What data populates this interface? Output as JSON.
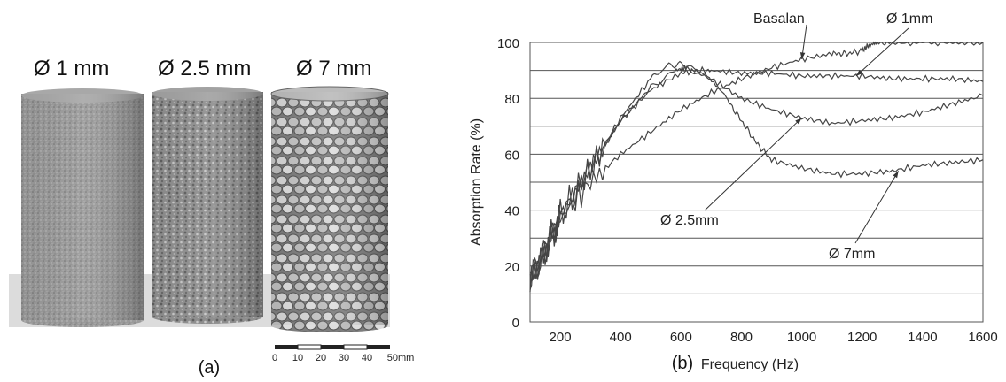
{
  "panel_a": {
    "caption": "(a)",
    "samples": [
      {
        "label": "Ø 1 mm"
      },
      {
        "label": "Ø 2.5 mm"
      },
      {
        "label": "Ø 7 mm"
      }
    ],
    "scale_bar": {
      "ticks": [
        "0",
        "10",
        "20",
        "30",
        "40",
        "50mm"
      ]
    }
  },
  "panel_b": {
    "caption": "(b)"
  },
  "chart_data": {
    "type": "line",
    "title": "",
    "xlabel": "Frequency (Hz)",
    "ylabel": "Absorption Rate (%)",
    "xlim": [
      100,
      1600
    ],
    "ylim": [
      0,
      100
    ],
    "x_ticks": [
      200,
      400,
      600,
      800,
      1000,
      1200,
      1400,
      1600
    ],
    "y_ticks": [
      0,
      20,
      40,
      60,
      80,
      100
    ],
    "grid": "horizontal",
    "colors": {
      "line": "#444444",
      "grid": "#555555",
      "background": "#ffffff"
    },
    "series": [
      {
        "name": "Basalan",
        "x": [
          100,
          150,
          200,
          300,
          400,
          500,
          600,
          700,
          800,
          900,
          1000,
          1100,
          1150,
          1200,
          1220,
          1250,
          1300,
          1400,
          1500,
          1600
        ],
        "y": [
          15,
          25,
          37,
          50,
          60,
          68,
          76,
          82,
          87,
          91,
          94,
          96,
          96,
          97,
          99,
          100,
          100,
          100,
          100,
          100
        ]
      },
      {
        "name": "Ø 1mm",
        "x": [
          100,
          150,
          200,
          300,
          400,
          500,
          600,
          650,
          700,
          800,
          900,
          1000,
          1100,
          1200,
          1300,
          1400,
          1500,
          1600
        ],
        "y": [
          15,
          25,
          38,
          55,
          72,
          83,
          89,
          90,
          90,
          89,
          89,
          88,
          88,
          88,
          87,
          87,
          87,
          86
        ]
      },
      {
        "name": "Ø 2.5mm",
        "x": [
          100,
          150,
          200,
          300,
          400,
          500,
          580,
          620,
          700,
          800,
          900,
          1000,
          1100,
          1200,
          1300,
          1400,
          1500,
          1600
        ],
        "y": [
          15,
          26,
          38,
          55,
          72,
          84,
          90,
          91,
          87,
          80,
          76,
          73,
          71,
          72,
          73,
          75,
          78,
          81
        ]
      },
      {
        "name": "Ø 7mm",
        "x": [
          100,
          150,
          200,
          300,
          400,
          500,
          560,
          620,
          680,
          750,
          800,
          850,
          900,
          1000,
          1100,
          1200,
          1300,
          1400,
          1500,
          1600
        ],
        "y": [
          15,
          26,
          38,
          55,
          73,
          87,
          92,
          92,
          88,
          80,
          72,
          64,
          58,
          55,
          53,
          53,
          54,
          56,
          57,
          58
        ]
      }
    ],
    "annotations": [
      "Basalan",
      "Ø 1mm",
      "Ø 2.5mm",
      "Ø 7mm"
    ]
  }
}
